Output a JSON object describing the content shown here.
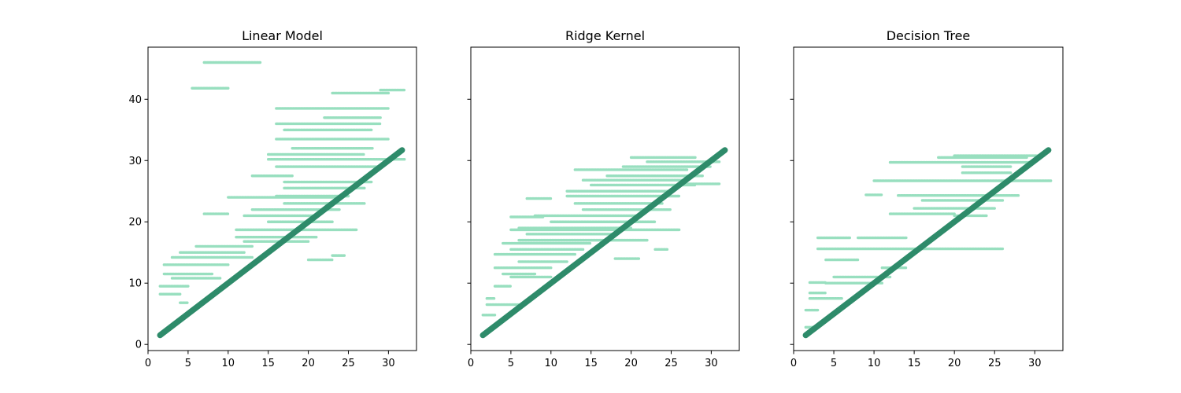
{
  "chart_data": [
    {
      "type": "scatter",
      "title": "Linear Model",
      "xlabel": "",
      "ylabel": "",
      "xlim": [
        0,
        33.5
      ],
      "ylim": [
        -1,
        48.5
      ],
      "xticks": [
        0,
        5,
        10,
        15,
        20,
        25,
        30
      ],
      "yticks": [
        0,
        10,
        20,
        30,
        40
      ],
      "show_yticklabels": true,
      "grid": false,
      "legend": "none",
      "colors": {
        "predicted": "#98dfbf",
        "actual": "#2e8b6a"
      },
      "identity_line": {
        "x": [
          1.5,
          31.7
        ],
        "y": [
          1.5,
          31.7
        ]
      },
      "predicted_bands": [
        {
          "x0": 7,
          "x1": 14,
          "y": 46
        },
        {
          "x0": 5.5,
          "x1": 10,
          "y": 41.8
        },
        {
          "x0": 23,
          "x1": 30,
          "y": 41
        },
        {
          "x0": 29,
          "x1": 32,
          "y": 41.5
        },
        {
          "x0": 16,
          "x1": 30,
          "y": 38.5
        },
        {
          "x0": 22,
          "x1": 29,
          "y": 37
        },
        {
          "x0": 16,
          "x1": 29,
          "y": 36
        },
        {
          "x0": 17,
          "x1": 28,
          "y": 35
        },
        {
          "x0": 16,
          "x1": 30,
          "y": 33.5
        },
        {
          "x0": 18,
          "x1": 28,
          "y": 32
        },
        {
          "x0": 15,
          "x1": 27,
          "y": 31
        },
        {
          "x0": 15,
          "x1": 32,
          "y": 30.2
        },
        {
          "x0": 16,
          "x1": 29,
          "y": 29
        },
        {
          "x0": 13,
          "x1": 18,
          "y": 27.5
        },
        {
          "x0": 17,
          "x1": 28,
          "y": 26.5
        },
        {
          "x0": 17,
          "x1": 27,
          "y": 25.5
        },
        {
          "x0": 16,
          "x1": 25,
          "y": 24.2
        },
        {
          "x0": 10,
          "x1": 24,
          "y": 24
        },
        {
          "x0": 17,
          "x1": 27,
          "y": 23
        },
        {
          "x0": 13,
          "x1": 24,
          "y": 22
        },
        {
          "x0": 12,
          "x1": 21,
          "y": 21
        },
        {
          "x0": 7,
          "x1": 10,
          "y": 21.3
        },
        {
          "x0": 15,
          "x1": 23,
          "y": 20
        },
        {
          "x0": 11,
          "x1": 26,
          "y": 18.7
        },
        {
          "x0": 11,
          "x1": 21,
          "y": 17.5
        },
        {
          "x0": 12,
          "x1": 20,
          "y": 16.8
        },
        {
          "x0": 6,
          "x1": 13,
          "y": 16
        },
        {
          "x0": 4,
          "x1": 12,
          "y": 15
        },
        {
          "x0": 3,
          "x1": 13,
          "y": 14.2
        },
        {
          "x0": 2,
          "x1": 10,
          "y": 13
        },
        {
          "x0": 2,
          "x1": 8,
          "y": 11.5
        },
        {
          "x0": 3,
          "x1": 9,
          "y": 10.8
        },
        {
          "x0": 1.5,
          "x1": 5,
          "y": 9.5
        },
        {
          "x0": 1.5,
          "x1": 4,
          "y": 8.2
        },
        {
          "x0": 4,
          "x1": 5,
          "y": 6.8
        },
        {
          "x0": 20,
          "x1": 23,
          "y": 13.8
        },
        {
          "x0": 23,
          "x1": 24.5,
          "y": 14.5
        }
      ]
    },
    {
      "type": "scatter",
      "title": "Ridge Kernel",
      "xlabel": "",
      "ylabel": "",
      "xlim": [
        0,
        33.5
      ],
      "ylim": [
        -1,
        48.5
      ],
      "xticks": [
        0,
        5,
        10,
        15,
        20,
        25,
        30
      ],
      "yticks": [
        0,
        10,
        20,
        30,
        40
      ],
      "show_yticklabels": false,
      "grid": false,
      "legend": "none",
      "colors": {
        "predicted": "#98dfbf",
        "actual": "#2e8b6a"
      },
      "identity_line": {
        "x": [
          1.5,
          31.7
        ],
        "y": [
          1.5,
          31.7
        ]
      },
      "predicted_bands": [
        {
          "x0": 20,
          "x1": 28,
          "y": 30.5
        },
        {
          "x0": 22,
          "x1": 31,
          "y": 29.8
        },
        {
          "x0": 19,
          "x1": 30,
          "y": 29
        },
        {
          "x0": 13,
          "x1": 27,
          "y": 28.5
        },
        {
          "x0": 17,
          "x1": 29,
          "y": 27.5
        },
        {
          "x0": 14,
          "x1": 27,
          "y": 26.8
        },
        {
          "x0": 15,
          "x1": 28,
          "y": 26
        },
        {
          "x0": 12,
          "x1": 25,
          "y": 25
        },
        {
          "x0": 12,
          "x1": 26,
          "y": 24.2
        },
        {
          "x0": 7,
          "x1": 10,
          "y": 23.8
        },
        {
          "x0": 13,
          "x1": 24,
          "y": 23
        },
        {
          "x0": 14,
          "x1": 25,
          "y": 22
        },
        {
          "x0": 8,
          "x1": 21,
          "y": 21
        },
        {
          "x0": 5,
          "x1": 9,
          "y": 20.8
        },
        {
          "x0": 10,
          "x1": 23,
          "y": 20
        },
        {
          "x0": 6,
          "x1": 20,
          "y": 19
        },
        {
          "x0": 5,
          "x1": 26,
          "y": 18.7
        },
        {
          "x0": 7,
          "x1": 18,
          "y": 18
        },
        {
          "x0": 6,
          "x1": 22,
          "y": 17
        },
        {
          "x0": 4,
          "x1": 15,
          "y": 16.5
        },
        {
          "x0": 5,
          "x1": 14,
          "y": 15.5
        },
        {
          "x0": 3,
          "x1": 13,
          "y": 14.7
        },
        {
          "x0": 6,
          "x1": 12,
          "y": 13.5
        },
        {
          "x0": 3,
          "x1": 10,
          "y": 12.5
        },
        {
          "x0": 4,
          "x1": 8,
          "y": 11.5
        },
        {
          "x0": 5,
          "x1": 10,
          "y": 11
        },
        {
          "x0": 3,
          "x1": 5,
          "y": 9.5
        },
        {
          "x0": 2,
          "x1": 3,
          "y": 7.5
        },
        {
          "x0": 2,
          "x1": 6,
          "y": 6.5
        },
        {
          "x0": 1.5,
          "x1": 3,
          "y": 4.8
        },
        {
          "x0": 18,
          "x1": 21,
          "y": 14
        },
        {
          "x0": 23,
          "x1": 24.5,
          "y": 15.5
        },
        {
          "x0": 27,
          "x1": 31,
          "y": 26.2
        }
      ]
    },
    {
      "type": "scatter",
      "title": "Decision Tree",
      "xlabel": "",
      "ylabel": "",
      "xlim": [
        0,
        33.5
      ],
      "ylim": [
        -1,
        48.5
      ],
      "xticks": [
        0,
        5,
        10,
        15,
        20,
        25,
        30
      ],
      "yticks": [
        0,
        10,
        20,
        30,
        40
      ],
      "show_yticklabels": false,
      "grid": false,
      "legend": "none",
      "colors": {
        "predicted": "#98dfbf",
        "actual": "#2e8b6a"
      },
      "identity_line": {
        "x": [
          1.5,
          31.7
        ],
        "y": [
          1.5,
          31.7
        ]
      },
      "predicted_bands": [
        {
          "x0": 20,
          "x1": 31,
          "y": 30.8
        },
        {
          "x0": 18,
          "x1": 29,
          "y": 30.5
        },
        {
          "x0": 12,
          "x1": 30,
          "y": 29.7
        },
        {
          "x0": 21,
          "x1": 27,
          "y": 29
        },
        {
          "x0": 21,
          "x1": 27,
          "y": 28
        },
        {
          "x0": 10,
          "x1": 32,
          "y": 26.7
        },
        {
          "x0": 9,
          "x1": 11,
          "y": 24.4
        },
        {
          "x0": 13,
          "x1": 28,
          "y": 24.3
        },
        {
          "x0": 16,
          "x1": 26,
          "y": 23.5
        },
        {
          "x0": 15,
          "x1": 25,
          "y": 22.2
        },
        {
          "x0": 12,
          "x1": 20,
          "y": 21.3
        },
        {
          "x0": 20,
          "x1": 24,
          "y": 21
        },
        {
          "x0": 3,
          "x1": 7,
          "y": 17.4
        },
        {
          "x0": 8,
          "x1": 14,
          "y": 17.4
        },
        {
          "x0": 3,
          "x1": 26,
          "y": 15.6
        },
        {
          "x0": 4,
          "x1": 8,
          "y": 13.8
        },
        {
          "x0": 11,
          "x1": 14,
          "y": 12.5
        },
        {
          "x0": 5,
          "x1": 12,
          "y": 11
        },
        {
          "x0": 2,
          "x1": 4,
          "y": 10.1
        },
        {
          "x0": 4,
          "x1": 11,
          "y": 10
        },
        {
          "x0": 2,
          "x1": 4,
          "y": 8.4
        },
        {
          "x0": 2,
          "x1": 6,
          "y": 7.5
        },
        {
          "x0": 1.5,
          "x1": 3,
          "y": 5.6
        },
        {
          "x0": 1.5,
          "x1": 3,
          "y": 2.8
        }
      ]
    }
  ]
}
